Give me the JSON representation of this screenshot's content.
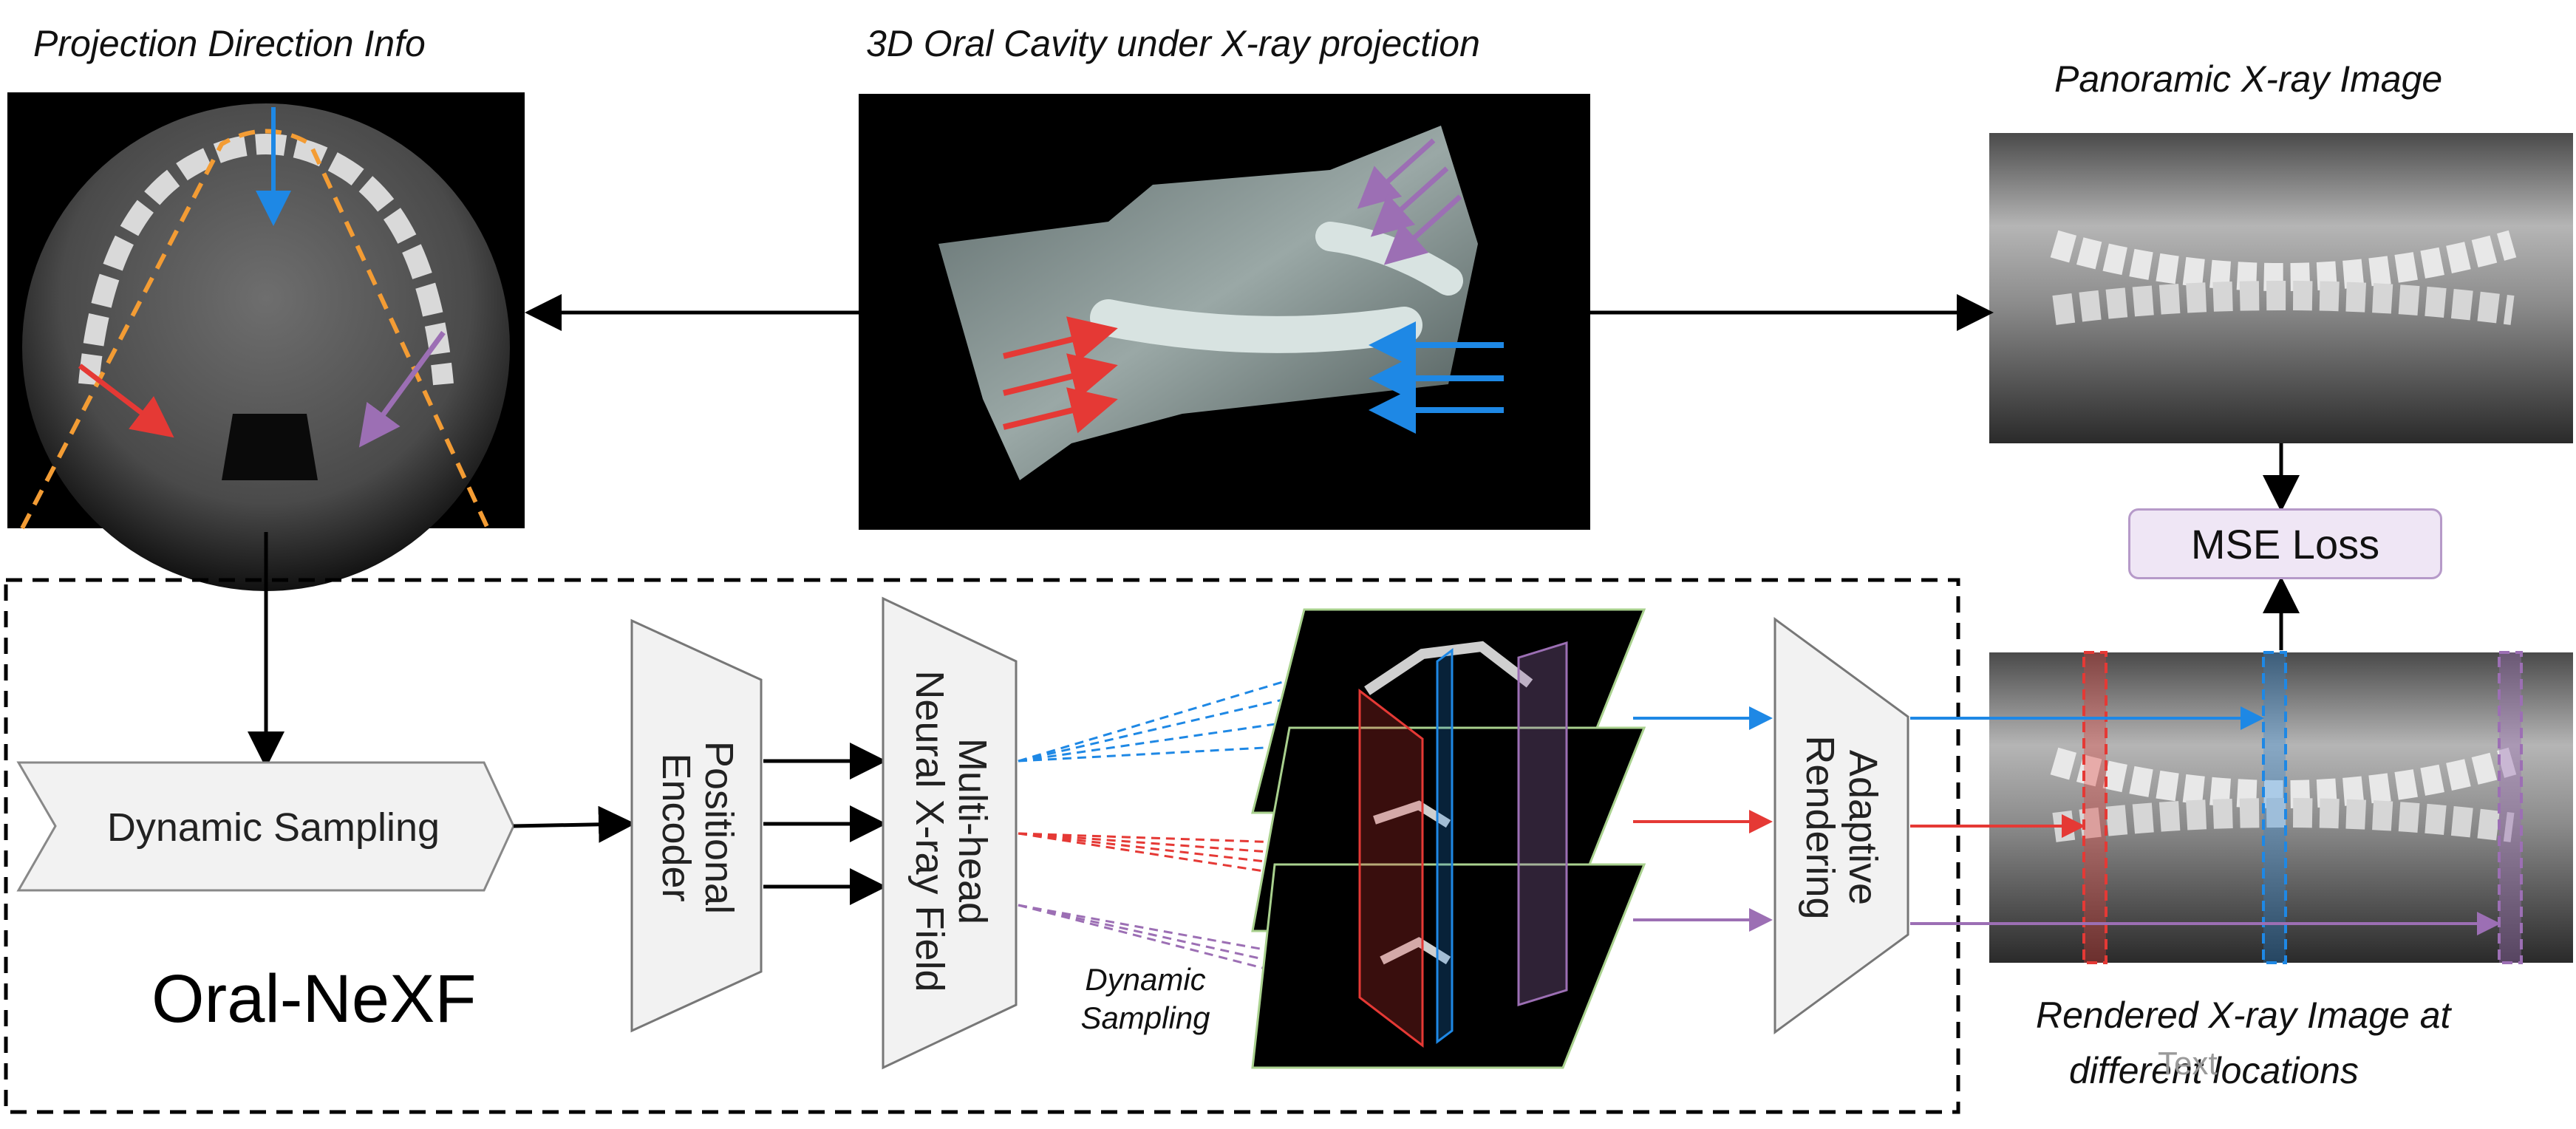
{
  "captions": {
    "projection_direction": "Projection Direction Info",
    "oral_cavity": "3D Oral Cavity under X-ray projection",
    "panoramic": "Panoramic X-ray Image",
    "rendered_line1": "Rendered X-ray Image at",
    "rendered_line2": "different locations"
  },
  "boxes": {
    "mse_loss": "MSE Loss",
    "dynamic_sampling": "Dynamic Sampling",
    "positional_encoder_line1": "Positional",
    "positional_encoder_line2": "Encoder",
    "neural_field_line1": "Multi-head",
    "neural_field_line2": "Neural X-ray Field",
    "adaptive_rendering_line1": "Adaptive",
    "adaptive_rendering_line2": "Rendering"
  },
  "labels": {
    "dynamic_sampling_small_line1": "Dynamic",
    "dynamic_sampling_small_line2": "Sampling",
    "framework_name": "Oral-NeXF",
    "watermark": "Text"
  },
  "colors": {
    "blue": "#1e88e5",
    "red": "#e53935",
    "purple": "#9c6fb4",
    "orange": "#f39c34",
    "mse_fill": "#efe6f5",
    "mse_border": "#b69ac9",
    "slice_border": "#a9d18e"
  }
}
